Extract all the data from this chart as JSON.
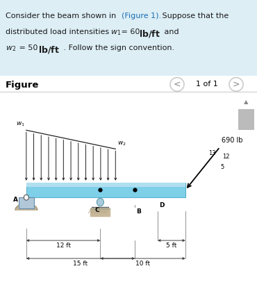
{
  "top_bg": "#ddeef5",
  "white_bg": "#ffffff",
  "beam_face": "#7ecfe8",
  "beam_edge": "#5ab0cc",
  "beam_highlight": "#b0dff0",
  "arrow_color": "#222222",
  "dim_color": "#444444",
  "support_color": "#888888",
  "ground_color": "#999999",
  "top_text_color": "#1a1a1a",
  "link_color": "#1a6db5",
  "nav_circle_color": "#cccccc",
  "scroll_color": "#bbbbbb",
  "fig_label": "Figure",
  "nav_label": "1 of 1",
  "force_label": "690 lb",
  "w1_label": "w₁",
  "w2_label": "w₂",
  "label_A": "A",
  "label_B": "B",
  "label_C": "C",
  "label_D": "D",
  "dim1_label": "12 ft",
  "dim2_label": "5 ft",
  "dim3_label": "15 ft",
  "dim4_label": "10 ft",
  "tri_13": "13",
  "tri_12": "12",
  "tri_5": "5"
}
